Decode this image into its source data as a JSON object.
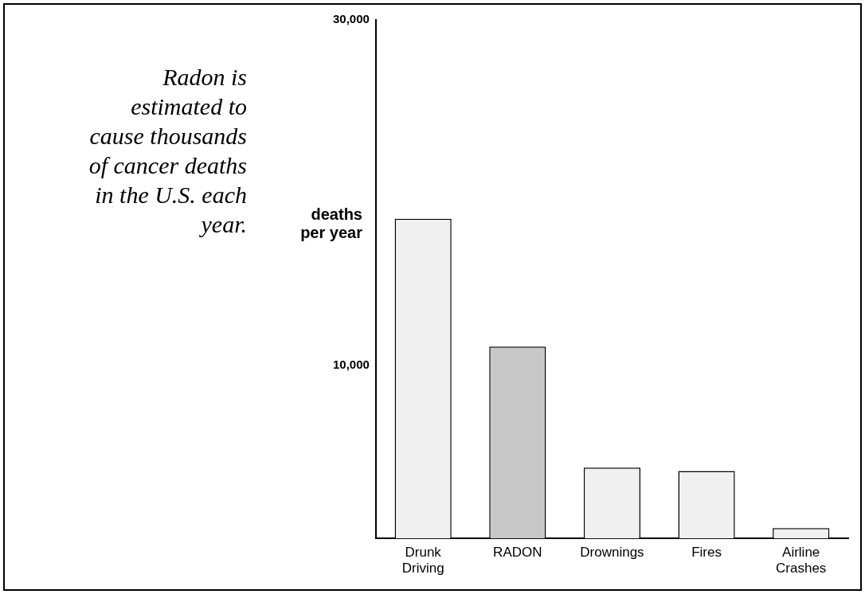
{
  "chart_data": {
    "type": "bar",
    "title": "Radon is estimated to cause thousands of cancer deaths in the U.S. each year.",
    "ylabel": "deaths per year",
    "categories": [
      "Drunk Driving",
      "RADON",
      "Drownings",
      "Fires",
      "Airline Crashes"
    ],
    "values": [
      18500,
      11100,
      4100,
      3900,
      600
    ],
    "colors": [
      "#f0f0f0",
      "#c8c8c8",
      "#f0f0f0",
      "#f0f0f0",
      "#f0f0f0"
    ],
    "ylim": [
      0,
      30000
    ],
    "yticks": [
      {
        "value": 10000,
        "label": "10,000"
      },
      {
        "value": 30000,
        "label": "30,000"
      }
    ],
    "grid": false,
    "legend": false
  }
}
